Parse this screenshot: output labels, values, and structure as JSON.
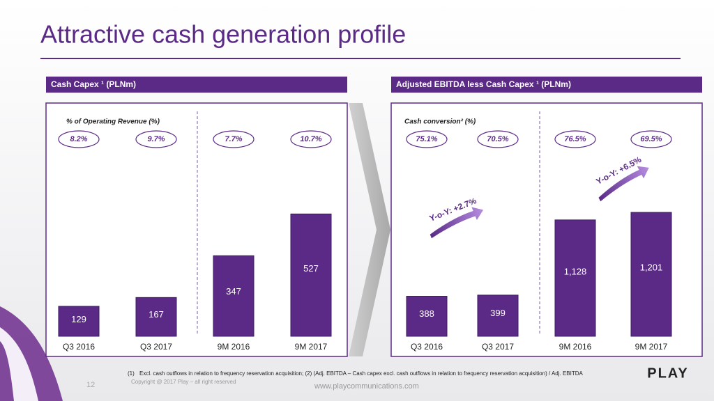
{
  "slide": {
    "title": "Attractive cash generation profile",
    "footnote_marker": "(1)",
    "footnote": "Excl. cash outflows in relation to frequency reservation acquisition;  (2) (Adj. EBITDA – Cash capex excl. cash outflows in relation to frequency reservation acquisition) / Adj. EBITDA",
    "page_number": "12",
    "copyright": "Copyright @ 2017 Play – all right reserved",
    "url": "www.playcommunications.com",
    "logo": "PLAY"
  },
  "chart_data": [
    {
      "type": "bar",
      "title": "Cash Capex ¹ (PLNm)",
      "subtitle": "% of Operating Revenue (%)",
      "categories": [
        "Q3 2016",
        "Q3 2017",
        "9M 2016",
        "9M 2017"
      ],
      "values": [
        129,
        167,
        347,
        527
      ],
      "color": "#5b2a86",
      "ratios": [
        8.2,
        9.7,
        7.7,
        10.7
      ],
      "ratio_labels": [
        "8.2%",
        "9.7%",
        "7.7%",
        "10.7%"
      ],
      "ylim": [
        0,
        600
      ]
    },
    {
      "type": "bar",
      "title": "Adjusted EBITDA less Cash Capex ¹ (PLNm)",
      "subtitle": "Cash conversion² (%)",
      "categories": [
        "Q3 2016",
        "Q3 2017",
        "9M 2016",
        "9M 2017"
      ],
      "values": [
        388,
        399,
        1128,
        1201
      ],
      "value_labels": [
        "388",
        "399",
        "1,128",
        "1,201"
      ],
      "color": "#5b2a86",
      "ratios": [
        75.1,
        70.5,
        76.5,
        69.5
      ],
      "ratio_labels": [
        "75.1%",
        "70.5%",
        "76.5%",
        "69.5%"
      ],
      "annotations": [
        "Y-o-Y: +2.7%",
        "Y-o-Y: +6.5%"
      ],
      "ylim": [
        0,
        1350
      ]
    }
  ]
}
